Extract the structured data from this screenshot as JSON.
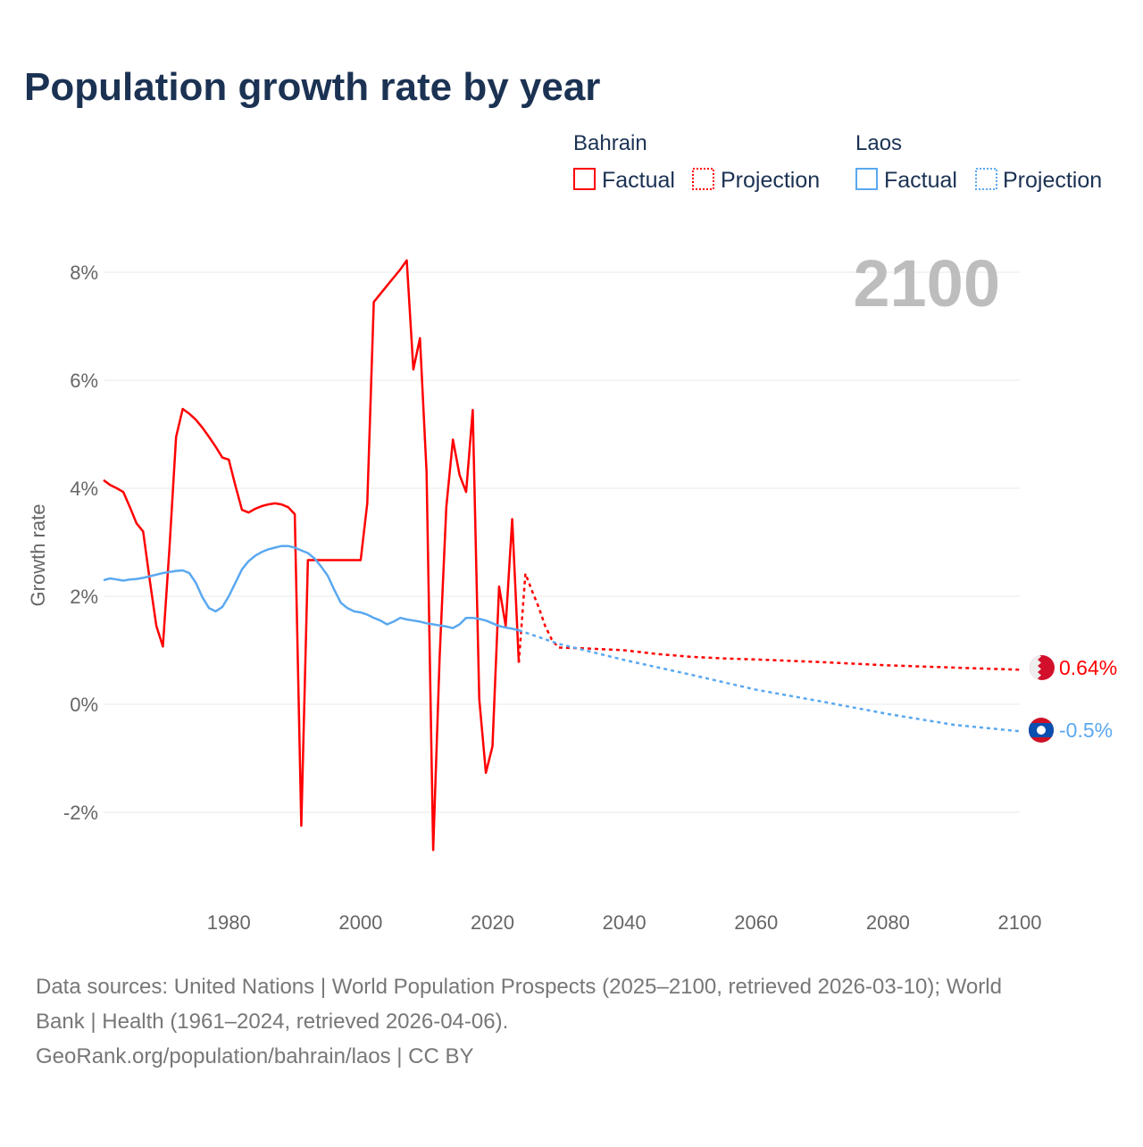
{
  "chart_data": {
    "type": "line",
    "title": "Population growth rate by year",
    "ylabel": "Growth rate",
    "xlabel": "",
    "xlim": [
      1961,
      2100
    ],
    "ylim": [
      -3,
      9
    ],
    "x_ticks": [
      "1980",
      "2000",
      "2020",
      "2040",
      "2060",
      "2080",
      "2100"
    ],
    "x_tick_values": [
      1980,
      2000,
      2020,
      2040,
      2060,
      2080,
      2100
    ],
    "y_ticks": [
      "8%",
      "6%",
      "4%",
      "2%",
      "0%",
      "-2%"
    ],
    "y_tick_values": [
      8,
      6,
      4,
      2,
      0,
      -2
    ],
    "grid": true,
    "year_display": "2100",
    "legend": {
      "placement": "top-right",
      "groups": [
        {
          "name": "Bahrain",
          "factual": "Factual",
          "projection": "Projection",
          "color": "#ff0000"
        },
        {
          "name": "Laos",
          "factual": "Factual",
          "projection": "Projection",
          "color": "#5aa8f0"
        }
      ]
    },
    "series": [
      {
        "name": "Bahrain",
        "color": "#ff0000",
        "end_label": "0.64%",
        "factual": {
          "x": [
            1961,
            1962,
            1963,
            1964,
            1965,
            1966,
            1967,
            1968,
            1969,
            1970,
            1971,
            1972,
            1973,
            1974,
            1975,
            1976,
            1977,
            1978,
            1979,
            1980,
            1981,
            1982,
            1983,
            1984,
            1985,
            1986,
            1987,
            1988,
            1989,
            1990,
            1991,
            1992,
            1993,
            1994,
            1995,
            1996,
            1997,
            1998,
            1999,
            2000,
            2001,
            2002,
            2003,
            2004,
            2005,
            2006,
            2007,
            2008,
            2009,
            2010,
            2011,
            2012,
            2013,
            2014,
            2015,
            2016,
            2017,
            2018,
            2019,
            2020,
            2021,
            2022,
            2023,
            2024
          ],
          "y": [
            4.15,
            4.06,
            4.0,
            3.93,
            3.65,
            3.35,
            3.2,
            2.3,
            1.45,
            1.07,
            2.9,
            4.95,
            5.47,
            5.38,
            5.27,
            5.12,
            4.95,
            4.77,
            4.57,
            4.53,
            4.05,
            3.6,
            3.55,
            3.62,
            3.67,
            3.7,
            3.72,
            3.7,
            3.65,
            3.52,
            -2.25,
            2.67,
            2.67,
            2.67,
            2.67,
            2.67,
            2.67,
            2.67,
            2.67,
            2.67,
            3.72,
            7.45,
            7.6,
            7.75,
            7.9,
            8.05,
            8.22,
            6.2,
            6.78,
            4.3,
            -2.7,
            0.9,
            3.65,
            4.9,
            4.25,
            3.93,
            5.45,
            0.1,
            -1.27,
            -0.78,
            2.18,
            1.45,
            3.43,
            0.77
          ]
        },
        "projection": {
          "x": [
            2024,
            2025,
            2026,
            2027,
            2028,
            2029,
            2030,
            2035,
            2040,
            2045,
            2050,
            2055,
            2060,
            2070,
            2080,
            2090,
            2100
          ],
          "y": [
            0.77,
            2.42,
            2.1,
            1.8,
            1.45,
            1.2,
            1.05,
            1.03,
            1.0,
            0.93,
            0.88,
            0.85,
            0.83,
            0.78,
            0.72,
            0.68,
            0.64
          ]
        }
      },
      {
        "name": "Laos",
        "color": "#5aa8f0",
        "end_label": "-0.5%",
        "factual": {
          "x": [
            1961,
            1962,
            1963,
            1964,
            1965,
            1966,
            1967,
            1968,
            1969,
            1970,
            1971,
            1972,
            1973,
            1974,
            1975,
            1976,
            1977,
            1978,
            1979,
            1980,
            1981,
            1982,
            1983,
            1984,
            1985,
            1986,
            1987,
            1988,
            1989,
            1990,
            1991,
            1992,
            1993,
            1994,
            1995,
            1996,
            1997,
            1998,
            1999,
            2000,
            2001,
            2002,
            2003,
            2004,
            2005,
            2006,
            2007,
            2008,
            2009,
            2010,
            2011,
            2012,
            2013,
            2014,
            2015,
            2016,
            2017,
            2018,
            2019,
            2020,
            2021,
            2022,
            2023,
            2024
          ],
          "y": [
            2.3,
            2.33,
            2.31,
            2.29,
            2.31,
            2.32,
            2.34,
            2.37,
            2.4,
            2.43,
            2.45,
            2.47,
            2.48,
            2.43,
            2.25,
            1.98,
            1.78,
            1.72,
            1.8,
            2.0,
            2.25,
            2.5,
            2.65,
            2.75,
            2.82,
            2.87,
            2.9,
            2.93,
            2.93,
            2.9,
            2.85,
            2.8,
            2.7,
            2.55,
            2.38,
            2.12,
            1.88,
            1.78,
            1.72,
            1.7,
            1.66,
            1.6,
            1.55,
            1.48,
            1.53,
            1.6,
            1.57,
            1.55,
            1.53,
            1.5,
            1.48,
            1.46,
            1.44,
            1.41,
            1.48,
            1.6,
            1.6,
            1.58,
            1.55,
            1.5,
            1.45,
            1.42,
            1.4,
            1.37
          ]
        },
        "projection": {
          "x": [
            2024,
            2030,
            2040,
            2050,
            2060,
            2070,
            2080,
            2090,
            2100
          ],
          "y": [
            1.37,
            1.12,
            0.82,
            0.55,
            0.27,
            0.05,
            -0.18,
            -0.38,
            -0.5
          ]
        }
      }
    ]
  },
  "footer": {
    "line1": "Data sources: United Nations | World Population Prospects (2025–2100, retrieved 2026-03-10); World",
    "line2": "Bank | Health (1961–2024, retrieved 2026-04-06).",
    "line3": "GeoRank.org/population/bahrain/laos | CC BY"
  }
}
